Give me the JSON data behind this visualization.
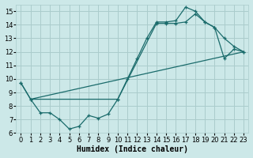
{
  "title": "",
  "xlabel": "Humidex (Indice chaleur)",
  "background_color": "#cce8e8",
  "grid_color": "#aacccc",
  "line_color": "#1a6b6b",
  "xlim": [
    -0.5,
    23.5
  ],
  "ylim": [
    6,
    15.5
  ],
  "xticks": [
    0,
    1,
    2,
    3,
    4,
    5,
    6,
    7,
    8,
    9,
    10,
    11,
    12,
    13,
    14,
    15,
    16,
    17,
    18,
    19,
    20,
    21,
    22,
    23
  ],
  "yticks": [
    6,
    7,
    8,
    9,
    10,
    11,
    12,
    13,
    14,
    15
  ],
  "series1_x": [
    0,
    1,
    2,
    3,
    4,
    5,
    6,
    7,
    8,
    9,
    10,
    11,
    12,
    13,
    14,
    15,
    16,
    17,
    18,
    19,
    20,
    21,
    22,
    23
  ],
  "series1_y": [
    9.7,
    8.5,
    7.5,
    7.5,
    7.0,
    6.3,
    6.5,
    7.3,
    7.1,
    7.4,
    8.5,
    10.0,
    11.5,
    13.0,
    14.2,
    14.2,
    14.3,
    15.3,
    15.0,
    14.2,
    13.8,
    13.0,
    12.4,
    12.0
  ],
  "series2_x": [
    1,
    23
  ],
  "series2_y": [
    8.5,
    12.0
  ],
  "series3_x": [
    0,
    1,
    10,
    14,
    15,
    16,
    17,
    18,
    19,
    20,
    21,
    22,
    23
  ],
  "series3_y": [
    9.7,
    8.5,
    8.5,
    14.1,
    14.1,
    14.1,
    14.2,
    14.8,
    14.2,
    13.8,
    11.5,
    12.2,
    12.0
  ],
  "fontsize_ticks": 6,
  "fontsize_label": 7
}
